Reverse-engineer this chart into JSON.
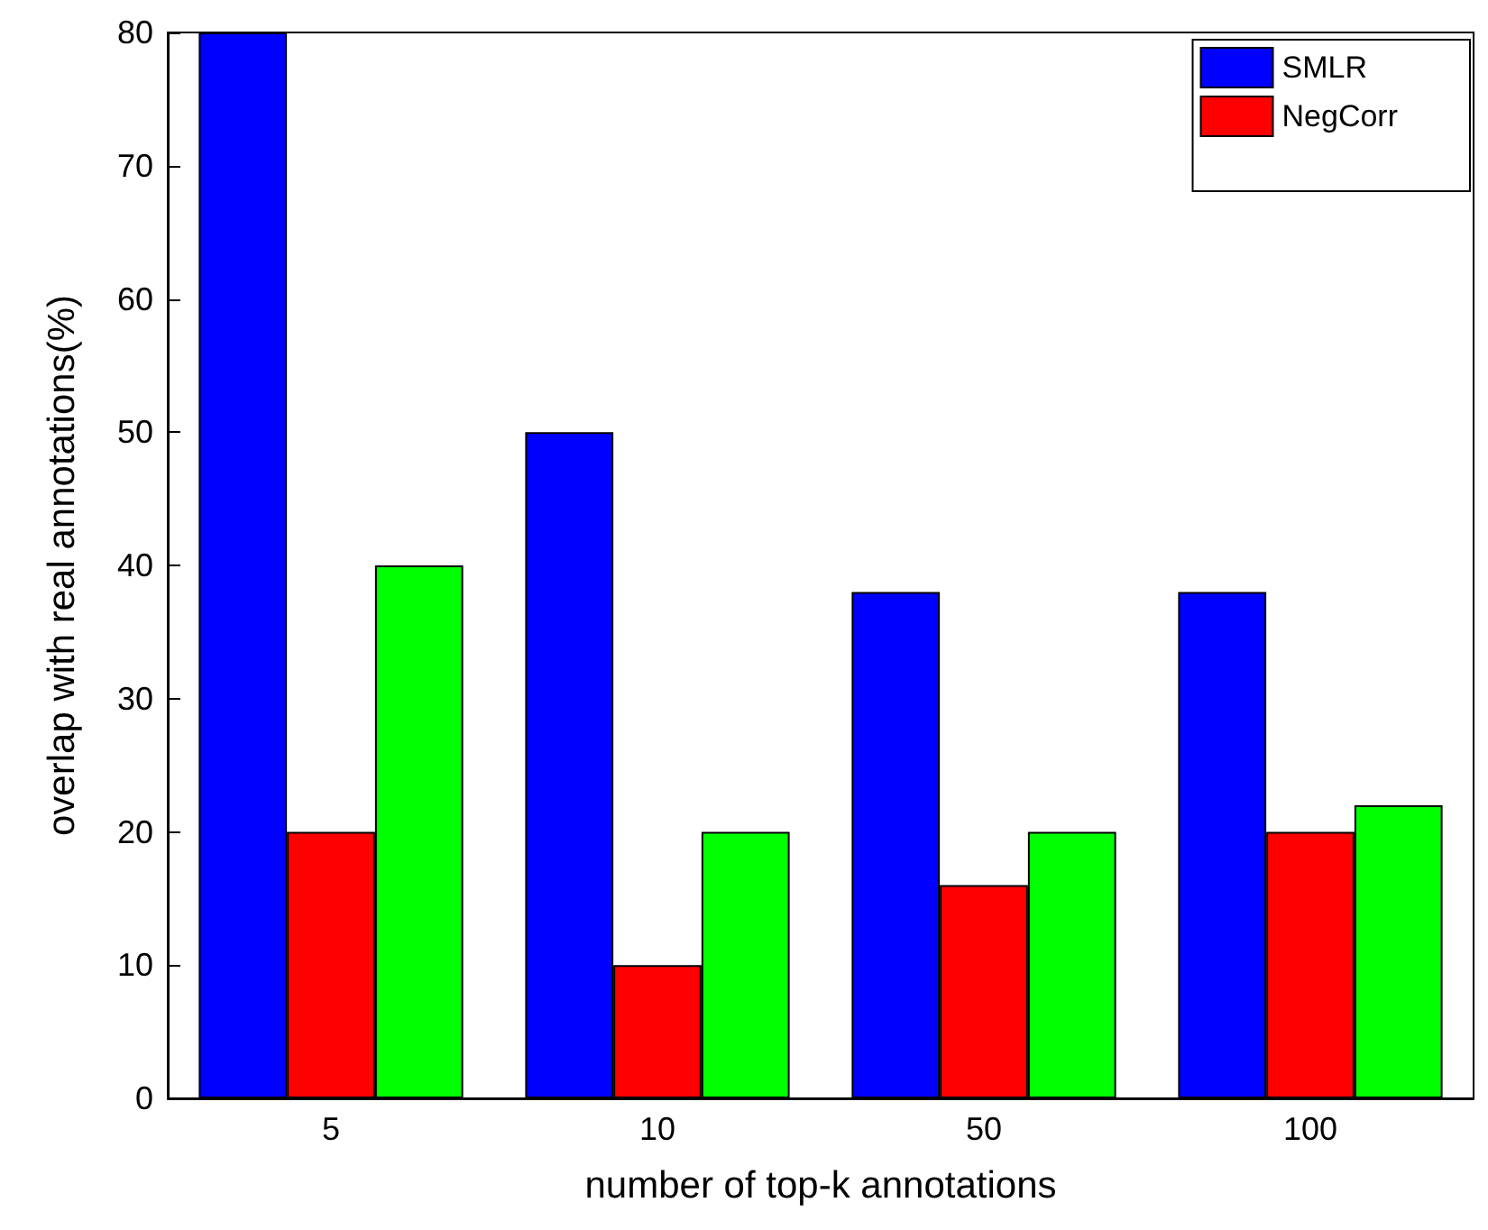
{
  "chart_data": {
    "type": "bar",
    "xlabel": "number of top-k annotations",
    "ylabel": "overlap with real annotations(%)",
    "categories": [
      "5",
      "10",
      "50",
      "100"
    ],
    "series": [
      {
        "name": "SMLR",
        "color": "#0000ff",
        "values": [
          80,
          50,
          38,
          38
        ]
      },
      {
        "name": "NegCorr",
        "color": "#ff0000",
        "values": [
          20,
          10,
          16,
          20
        ]
      },
      {
        "color": "#00ff00",
        "values": [
          40,
          20,
          20,
          22
        ]
      }
    ],
    "ylim": [
      0,
      80
    ],
    "yticks": [
      0,
      10,
      20,
      30,
      40,
      50,
      60,
      70,
      80
    ],
    "grid": false,
    "legend": "top right"
  }
}
